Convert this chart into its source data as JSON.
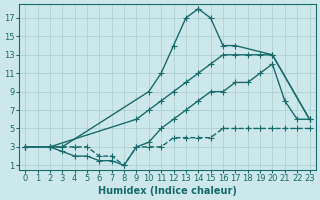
{
  "bg_color": "#cce8ea",
  "grid_color": "#aacccc",
  "line_color": "#1a6b6b",
  "line_width": 1.0,
  "markersize": 3,
  "xlabel": "Humidex (Indice chaleur)",
  "xlabel_fontsize": 7,
  "tick_fontsize": 6,
  "xlim": [
    -0.5,
    23.5
  ],
  "ylim": [
    0.5,
    18.5
  ],
  "yticks": [
    1,
    3,
    5,
    7,
    9,
    11,
    13,
    15,
    17
  ],
  "xticks": [
    0,
    1,
    2,
    3,
    4,
    5,
    6,
    7,
    8,
    9,
    10,
    11,
    12,
    13,
    14,
    15,
    16,
    17,
    18,
    19,
    20,
    21,
    22,
    23
  ],
  "line1_x": [
    0,
    2,
    3,
    10,
    11,
    12,
    13,
    14,
    14,
    15,
    16,
    17,
    20,
    23
  ],
  "line1_y": [
    3,
    3,
    3,
    9,
    11,
    14,
    17,
    18,
    18,
    17,
    14,
    14,
    13,
    6
  ],
  "line2_x": [
    0,
    2,
    9,
    10,
    11,
    12,
    13,
    14,
    15,
    16,
    17,
    18,
    19,
    20,
    23
  ],
  "line2_y": [
    3,
    3,
    6,
    7,
    8,
    9,
    10,
    11,
    12,
    13,
    13,
    13,
    13,
    13,
    6
  ],
  "line3_x": [
    0,
    2,
    3,
    4,
    5,
    6,
    7,
    8,
    9,
    10,
    11,
    12,
    13,
    14,
    15,
    16,
    17,
    18,
    19,
    20,
    21,
    22,
    23
  ],
  "line3_y": [
    3,
    3,
    3,
    3,
    3,
    2,
    2,
    1,
    3,
    3,
    3,
    4,
    4,
    4,
    4,
    5,
    5,
    5,
    5,
    5,
    5,
    5,
    5
  ],
  "line4_x": [
    0,
    2,
    3,
    4,
    5,
    6,
    7,
    8,
    9,
    10,
    11,
    12,
    13,
    14,
    15,
    16,
    17,
    18,
    19,
    20,
    21,
    22,
    23
  ],
  "line4_y": [
    3,
    3,
    2.5,
    2,
    2,
    1.5,
    1.5,
    1,
    3,
    3.5,
    5,
    6,
    7,
    8,
    9,
    9,
    10,
    10,
    11,
    12,
    8,
    6,
    6
  ],
  "figsize": [
    3.2,
    2.0
  ],
  "dpi": 100
}
